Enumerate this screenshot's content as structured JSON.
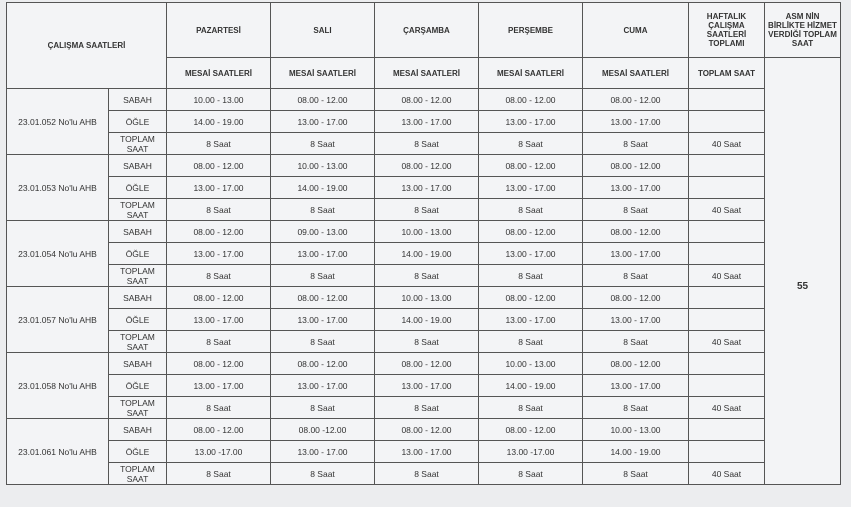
{
  "header": {
    "title": "ÇALIŞMA SAATLERİ",
    "days": [
      "PAZARTESİ",
      "SALI",
      "ÇARŞAMBA",
      "PERŞEMBE",
      "CUMA"
    ],
    "weekly_total": "HAFTALIK ÇALIŞMA SAATLERİ TOPLAMI",
    "asm_total": "ASM NİN BİRLİKTE HİZMET VERDİĞİ TOPLAM SAAT",
    "shift_labels": [
      "MESAİ SAATLERİ",
      "MESAİ SAATLERİ",
      "MESAİ SAATLERİ",
      "MESAİ SAATLERİ",
      "MESAİ SAATLERİ"
    ],
    "total_label": "TOPLAM SAAT"
  },
  "asm_value": "55",
  "groups": [
    {
      "unit": "23.01.052 No'lu AHB",
      "rows": [
        {
          "label": "SABAH",
          "times": [
            "10.00 - 13.00",
            "08.00 - 12.00",
            "08.00 - 12.00",
            "08.00 - 12.00",
            "08.00 - 12.00"
          ]
        },
        {
          "label": "ÖĞLE",
          "times": [
            "14.00 - 19.00",
            "13.00 - 17.00",
            "13.00 - 17.00",
            "13.00 - 17.00",
            "13.00 - 17.00"
          ]
        },
        {
          "label": "TOPLAM SAAT",
          "times": [
            "8 Saat",
            "8 Saat",
            "8 Saat",
            "8 Saat",
            "8 Saat"
          ],
          "total": "40 Saat"
        }
      ]
    },
    {
      "unit": "23.01.053 No'lu AHB",
      "rows": [
        {
          "label": "SABAH",
          "times": [
            "08.00 - 12.00",
            "10.00 - 13.00",
            "08.00 - 12.00",
            "08.00 - 12.00",
            "08.00 - 12.00"
          ]
        },
        {
          "label": "ÖĞLE",
          "times": [
            "13.00 - 17.00",
            "14.00 - 19.00",
            "13.00 - 17.00",
            "13.00 - 17.00",
            "13.00 - 17.00"
          ]
        },
        {
          "label": "TOPLAM SAAT",
          "times": [
            "8 Saat",
            "8 Saat",
            "8 Saat",
            "8 Saat",
            "8 Saat"
          ],
          "total": "40 Saat"
        }
      ]
    },
    {
      "unit": "23.01.054 No'lu AHB",
      "rows": [
        {
          "label": "SABAH",
          "times": [
            "08.00 - 12.00",
            "09.00 - 13.00",
            "10.00 - 13.00",
            "08.00 - 12.00",
            "08.00 - 12.00"
          ]
        },
        {
          "label": "ÖĞLE",
          "times": [
            "13.00 - 17.00",
            "13.00 - 17.00",
            "14.00 - 19.00",
            "13.00 - 17.00",
            "13.00 - 17.00"
          ]
        },
        {
          "label": "TOPLAM SAAT",
          "times": [
            "8 Saat",
            "8 Saat",
            "8 Saat",
            "8 Saat",
            "8 Saat"
          ],
          "total": "40 Saat"
        }
      ]
    },
    {
      "unit": "23.01.057 No'lu AHB",
      "rows": [
        {
          "label": "SABAH",
          "times": [
            "08.00 - 12.00",
            "08.00 - 12.00",
            "10.00 - 13.00",
            "08.00 - 12.00",
            "08.00 - 12.00"
          ]
        },
        {
          "label": "ÖĞLE",
          "times": [
            "13.00 - 17.00",
            "13.00 - 17.00",
            "14.00 - 19.00",
            "13.00 - 17.00",
            "13.00 - 17.00"
          ]
        },
        {
          "label": "TOPLAM SAAT",
          "times": [
            "8 Saat",
            "8 Saat",
            "8 Saat",
            "8 Saat",
            "8 Saat"
          ],
          "total": "40 Saat"
        }
      ]
    },
    {
      "unit": "23.01.058 No'lu AHB",
      "rows": [
        {
          "label": "SABAH",
          "times": [
            "08.00 - 12.00",
            "08.00 - 12.00",
            "08.00 - 12.00",
            "10.00 - 13.00",
            "08.00 - 12.00"
          ]
        },
        {
          "label": "ÖĞLE",
          "times": [
            "13.00 - 17.00",
            "13.00 - 17.00",
            "13.00 - 17.00",
            "14.00 - 19.00",
            "13.00 - 17.00"
          ]
        },
        {
          "label": "TOPLAM SAAT",
          "times": [
            "8 Saat",
            "8 Saat",
            "8 Saat",
            "8 Saat",
            "8 Saat"
          ],
          "total": "40 Saat"
        }
      ]
    },
    {
      "unit": "23.01.061 No'lu AHB",
      "rows": [
        {
          "label": "SABAH",
          "times": [
            "08.00 - 12.00",
            "08.00 -12.00",
            "08.00 - 12.00",
            "08.00 - 12.00",
            "10.00 - 13.00"
          ]
        },
        {
          "label": "ÖĞLE",
          "times": [
            "13.00 -17.00",
            "13.00 - 17.00",
            "13.00 - 17.00",
            "13.00 -17.00",
            "14.00 - 19.00"
          ]
        },
        {
          "label": "TOPLAM SAAT",
          "times": [
            "8 Saat",
            "8 Saat",
            "8 Saat",
            "8 Saat",
            "8 Saat"
          ],
          "total": "40 Saat"
        }
      ]
    }
  ]
}
